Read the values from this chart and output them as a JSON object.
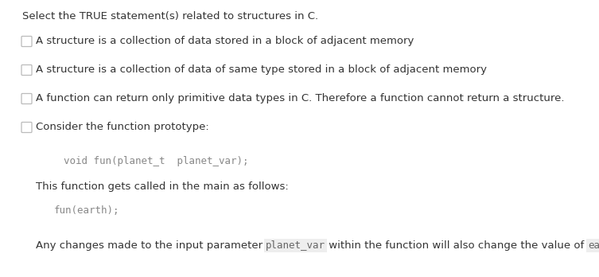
{
  "title": "Select the TRUE statement(s) related to structures in C.",
  "background_color": "#ffffff",
  "text_color": "#333333",
  "checkbox_color": "#bbbbbb",
  "options": [
    "A structure is a collection of data stored in a block of adjacent memory",
    "A structure is a collection of data of same type stored in a block of adjacent memory",
    "A function can return only primitive data types in C. Therefore a function cannot return a structure.",
    "Consider the function prototype:"
  ],
  "code_block1": "void fun(planet_t  planet_var);",
  "desc_text": "This function gets called in the main as follows:",
  "code_block2": "fun(earth);",
  "final_text_parts": [
    {
      "text": "Any changes made to the input parameter ",
      "style": "normal"
    },
    {
      "text": "planet_var",
      "style": "mono"
    },
    {
      "text": " within the function will also change the value of ",
      "style": "normal"
    },
    {
      "text": "earth",
      "style": "mono"
    },
    {
      "text": ".",
      "style": "normal"
    }
  ],
  "mono_color": "#666666",
  "mono_bg": "#eeeeee",
  "code_color": "#888888",
  "font_size_code": 9.0,
  "font_size_main": 9.5,
  "font_size_title": 9.5
}
